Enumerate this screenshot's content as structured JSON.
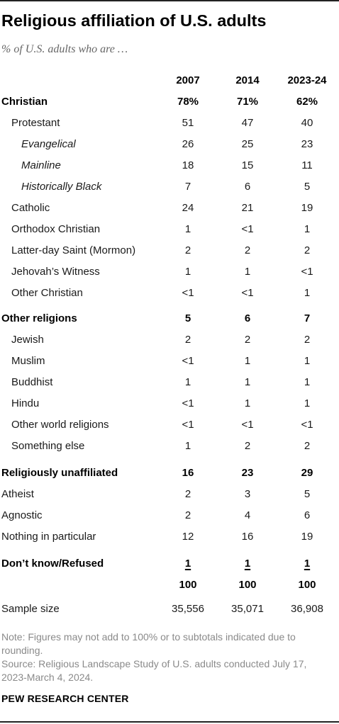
{
  "title": "Religious affiliation of U.S. adults",
  "subtitle": "% of U.S. adults who are …",
  "note": "Note: Figures may not add to 100% or to subtotals indicated due to rounding.",
  "source": "Source: Religious Landscape Study of U.S. adults conducted July 17, 2023-March 4, 2024.",
  "brand": "PEW RESEARCH CENTER",
  "chart_data": {
    "type": "table",
    "title": "Religious affiliation of U.S. adults",
    "subtitle": "% of U.S. adults who are …",
    "columns": [
      "2007",
      "2014",
      "2023-24"
    ],
    "rows": [
      {
        "label": "Christian",
        "values": [
          "78%",
          "71%",
          "62%"
        ],
        "style": "bold",
        "indent": 0
      },
      {
        "label": "Protestant",
        "values": [
          "51",
          "47",
          "40"
        ],
        "style": "normal",
        "indent": 1
      },
      {
        "label": "Evangelical",
        "values": [
          "26",
          "25",
          "23"
        ],
        "style": "italic",
        "indent": 2
      },
      {
        "label": "Mainline",
        "values": [
          "18",
          "15",
          "11"
        ],
        "style": "italic",
        "indent": 2
      },
      {
        "label": "Historically Black",
        "values": [
          "7",
          "6",
          "5"
        ],
        "style": "italic",
        "indent": 2
      },
      {
        "label": "Catholic",
        "values": [
          "24",
          "21",
          "19"
        ],
        "style": "normal",
        "indent": 1
      },
      {
        "label": "Orthodox Christian",
        "values": [
          "1",
          "<1",
          "1"
        ],
        "style": "normal",
        "indent": 1
      },
      {
        "label": "Latter-day Saint (Mormon)",
        "values": [
          "2",
          "2",
          "2"
        ],
        "style": "normal",
        "indent": 1
      },
      {
        "label": "Jehovah’s Witness",
        "values": [
          "1",
          "1",
          "<1"
        ],
        "style": "normal",
        "indent": 1
      },
      {
        "label": "Other Christian",
        "values": [
          "<1",
          "<1",
          "1"
        ],
        "style": "normal",
        "indent": 1
      },
      {
        "label": "Other religions",
        "values": [
          "5",
          "6",
          "7"
        ],
        "style": "bold",
        "indent": 0
      },
      {
        "label": "Jewish",
        "values": [
          "2",
          "2",
          "2"
        ],
        "style": "normal",
        "indent": 1
      },
      {
        "label": "Muslim",
        "values": [
          "<1",
          "1",
          "1"
        ],
        "style": "normal",
        "indent": 1
      },
      {
        "label": "Buddhist",
        "values": [
          "1",
          "1",
          "1"
        ],
        "style": "normal",
        "indent": 1
      },
      {
        "label": "Hindu",
        "values": [
          "<1",
          "1",
          "1"
        ],
        "style": "normal",
        "indent": 1
      },
      {
        "label": "Other world religions",
        "values": [
          "<1",
          "<1",
          "<1"
        ],
        "style": "normal",
        "indent": 1
      },
      {
        "label": "Something else",
        "values": [
          "1",
          "2",
          "2"
        ],
        "style": "normal",
        "indent": 1
      },
      {
        "label": "Religiously unaffiliated",
        "values": [
          "16",
          "23",
          "29"
        ],
        "style": "bold",
        "indent": 0
      },
      {
        "label": "Atheist",
        "values": [
          "2",
          "3",
          "5"
        ],
        "style": "normal",
        "indent": 0
      },
      {
        "label": "Agnostic",
        "values": [
          "2",
          "4",
          "6"
        ],
        "style": "normal",
        "indent": 0
      },
      {
        "label": "Nothing in particular",
        "values": [
          "12",
          "16",
          "19"
        ],
        "style": "normal",
        "indent": 0
      },
      {
        "label": "Don’t know/Refused",
        "values": [
          "1",
          "1",
          "1"
        ],
        "style": "bold-underline",
        "indent": 0
      },
      {
        "label": "",
        "values": [
          "100",
          "100",
          "100"
        ],
        "style": "bold",
        "indent": 0
      },
      {
        "label": "Sample size",
        "values": [
          "35,556",
          "35,071",
          "36,908"
        ],
        "style": "normal",
        "indent": 0
      }
    ]
  }
}
